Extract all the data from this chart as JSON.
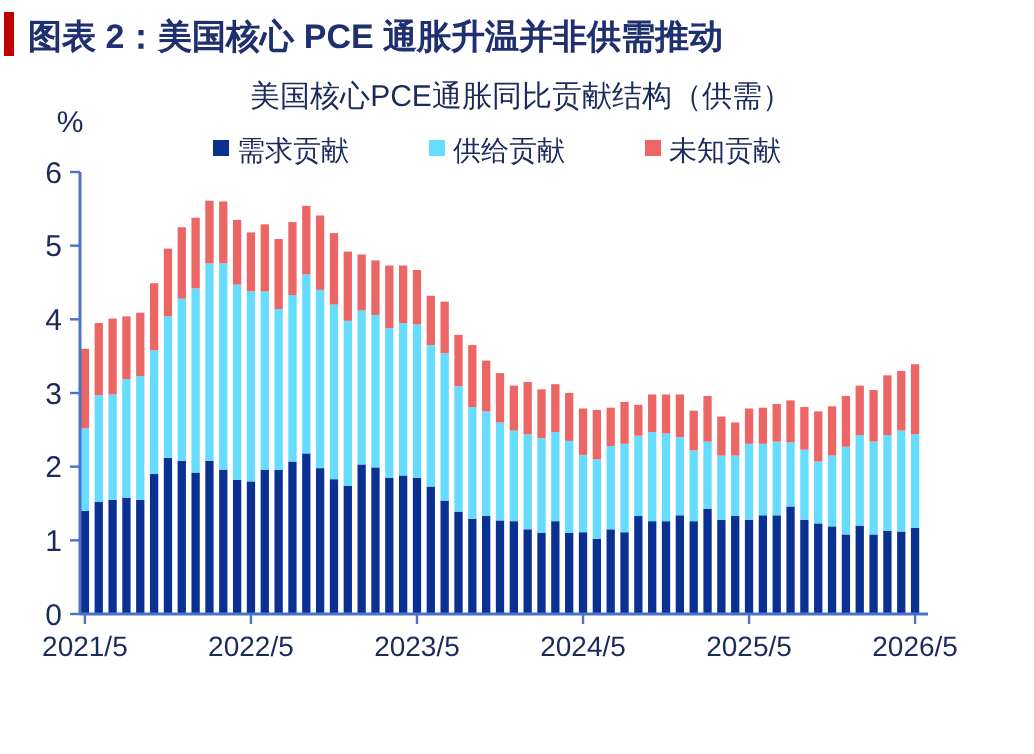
{
  "chart_data": {
    "type": "bar",
    "stacked": true,
    "title": "图表 2：美国核心 PCE 通胀升温并非供需推动",
    "subtitle": "美国核心PCE通胀同比贡献结构（供需）",
    "ylabel": "%",
    "ylim": [
      0,
      6
    ],
    "yticks": [
      0,
      1,
      2,
      3,
      4,
      5,
      6
    ],
    "legend": "top",
    "grid": false,
    "categories": [
      "2021/5",
      null,
      null,
      null,
      null,
      null,
      null,
      null,
      null,
      null,
      null,
      null,
      "2022/5",
      null,
      null,
      null,
      null,
      null,
      null,
      null,
      null,
      null,
      null,
      null,
      "2023/5",
      null,
      null,
      null,
      null,
      null,
      null,
      null,
      null,
      null,
      null,
      null,
      "2024/5",
      null,
      null,
      null,
      null,
      null,
      null,
      null,
      null,
      null,
      null,
      null,
      "2025/5",
      null,
      null,
      null,
      null,
      null,
      null,
      null,
      null,
      null,
      null,
      null,
      "2026/5"
    ],
    "series": [
      {
        "name": "需求贡献",
        "color": "#0a3192",
        "values": [
          1.4,
          1.52,
          1.55,
          1.58,
          1.55,
          1.9,
          2.12,
          2.08,
          1.92,
          2.08,
          1.96,
          1.82,
          1.8,
          1.96,
          1.96,
          2.07,
          2.18,
          1.98,
          1.83,
          1.74,
          2.03,
          1.99,
          1.85,
          1.88,
          1.85,
          1.73,
          1.54,
          1.39,
          1.29,
          1.33,
          1.27,
          1.26,
          1.15,
          1.1,
          1.26,
          1.1,
          1.11,
          1.02,
          1.15,
          1.11,
          1.33,
          1.26,
          1.26,
          1.34,
          1.26,
          1.43,
          1.28,
          1.33,
          1.28,
          1.34,
          1.34,
          1.46,
          1.28,
          1.23,
          1.19,
          1.08,
          1.2,
          1.08,
          1.13,
          1.12,
          1.17
        ]
      },
      {
        "name": "供给贡献",
        "color": "#66dcff",
        "values": [
          1.12,
          1.45,
          1.43,
          1.61,
          1.68,
          1.68,
          1.92,
          2.2,
          2.5,
          2.68,
          2.8,
          2.65,
          2.58,
          2.42,
          2.18,
          2.26,
          2.43,
          2.42,
          2.37,
          2.24,
          2.09,
          2.07,
          2.03,
          2.07,
          2.08,
          1.92,
          2.0,
          1.7,
          1.52,
          1.42,
          1.33,
          1.23,
          1.29,
          1.29,
          1.21,
          1.25,
          1.05,
          1.08,
          1.13,
          1.2,
          1.09,
          1.21,
          1.19,
          1.06,
          0.96,
          0.91,
          0.87,
          0.82,
          1.03,
          0.97,
          1.0,
          0.87,
          0.95,
          0.84,
          0.96,
          1.19,
          1.23,
          1.26,
          1.3,
          1.37,
          1.27
        ]
      },
      {
        "name": "未知贡献",
        "color": "#ec6665",
        "values": [
          1.08,
          0.98,
          1.03,
          0.85,
          0.86,
          0.91,
          0.92,
          0.97,
          0.96,
          0.85,
          0.84,
          0.88,
          0.8,
          0.91,
          0.95,
          0.99,
          0.93,
          1.01,
          0.97,
          0.94,
          0.76,
          0.74,
          0.85,
          0.78,
          0.74,
          0.67,
          0.7,
          0.7,
          0.84,
          0.69,
          0.67,
          0.61,
          0.71,
          0.66,
          0.65,
          0.65,
          0.63,
          0.67,
          0.52,
          0.57,
          0.42,
          0.51,
          0.53,
          0.58,
          0.54,
          0.62,
          0.53,
          0.45,
          0.48,
          0.49,
          0.51,
          0.57,
          0.58,
          0.68,
          0.67,
          0.69,
          0.67,
          0.7,
          0.81,
          0.81,
          0.95
        ]
      }
    ]
  }
}
